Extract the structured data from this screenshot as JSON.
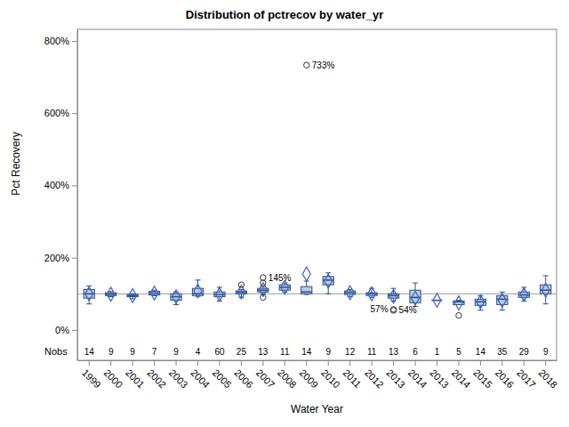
{
  "chart_data": {
    "type": "box",
    "title": "Distribution of pctrecov by water_yr",
    "x_label": "Water Year",
    "y_label": "Pct Recovery",
    "categories": [
      "1999",
      "2000",
      "2001",
      "2002",
      "2003",
      "2004",
      "2005",
      "2006",
      "2007",
      "2008",
      "2009",
      "2010",
      "2011",
      "2012",
      "2013",
      "2014",
      "2013",
      "2014",
      "2015",
      "2016",
      "2017",
      "2018"
    ],
    "q1": [
      88,
      95,
      92,
      97,
      82,
      95,
      92,
      100,
      105,
      110,
      100,
      125,
      98,
      95,
      88,
      75,
      82,
      70,
      68,
      70,
      90,
      100
    ],
    "median": [
      100,
      99,
      95,
      102,
      92,
      100,
      98,
      104,
      110,
      118,
      105,
      138,
      103,
      100,
      95,
      90,
      82,
      78,
      78,
      85,
      97,
      110
    ],
    "q3": [
      112,
      103,
      98,
      107,
      100,
      115,
      105,
      108,
      115,
      125,
      120,
      148,
      108,
      103,
      100,
      110,
      82,
      80,
      85,
      95,
      105,
      125
    ],
    "whisker_low": [
      72,
      92,
      86,
      95,
      70,
      93,
      80,
      90,
      100,
      105,
      98,
      100,
      92,
      90,
      80,
      65,
      82,
      70,
      55,
      55,
      80,
      72
    ],
    "whisker_high": [
      122,
      106,
      100,
      110,
      105,
      138,
      118,
      112,
      120,
      130,
      135,
      158,
      112,
      115,
      115,
      130,
      82,
      82,
      95,
      105,
      118,
      150
    ],
    "mean": [
      100,
      99,
      95,
      102,
      92,
      108,
      98,
      105,
      112,
      118,
      155,
      135,
      103,
      100,
      93,
      88,
      82,
      75,
      78,
      82,
      98,
      110
    ],
    "outliers": [
      [],
      [],
      [],
      [],
      [],
      [],
      [],
      [
        125
      ],
      [
        145,
        130,
        90
      ],
      [],
      [
        733
      ],
      [],
      [],
      [],
      [
        57,
        54
      ],
      [],
      [],
      [
        40
      ],
      [],
      [],
      [],
      []
    ],
    "outlier_labels": [
      [],
      [],
      [],
      [],
      [],
      [],
      [],
      [
        null
      ],
      [
        "145%",
        null,
        null
      ],
      [],
      [
        "733%"
      ],
      [],
      [],
      [],
      [
        "57%",
        "54%"
      ],
      [],
      [],
      [
        null
      ],
      [],
      [],
      [],
      []
    ],
    "counts_label": "Nobs",
    "counts": [
      14,
      9,
      9,
      7,
      9,
      4,
      60,
      25,
      13,
      11,
      14,
      9,
      12,
      11,
      13,
      6,
      1,
      5,
      14,
      35,
      29,
      9
    ],
    "reference_line": 100,
    "ylim": [
      -84,
      832
    ],
    "yticks": [
      {
        "value": 0,
        "label": "0%"
      },
      {
        "value": 200,
        "label": "200%"
      },
      {
        "value": 400,
        "label": "400%"
      },
      {
        "value": 600,
        "label": "600%"
      },
      {
        "value": 800,
        "label": "800%"
      }
    ],
    "color": "#b9cadd",
    "grid": false
  }
}
